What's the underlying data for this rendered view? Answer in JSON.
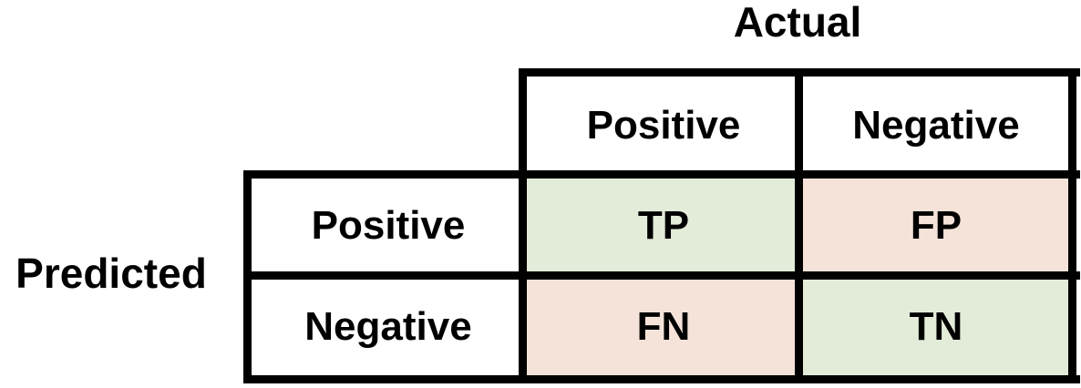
{
  "axes": {
    "actual_label": "Actual",
    "predicted_label": "Predicted"
  },
  "columns": {
    "positive": "Positive",
    "negative": "Negative"
  },
  "rows": {
    "positive": "Positive",
    "negative": "Negative"
  },
  "cells": {
    "tp": "TP",
    "fp": "FP",
    "fn": "FN",
    "tn": "TN"
  },
  "colors": {
    "correct_fill": "#e2ecd9",
    "incorrect_fill": "#f5e3d9",
    "border": "#000000"
  }
}
